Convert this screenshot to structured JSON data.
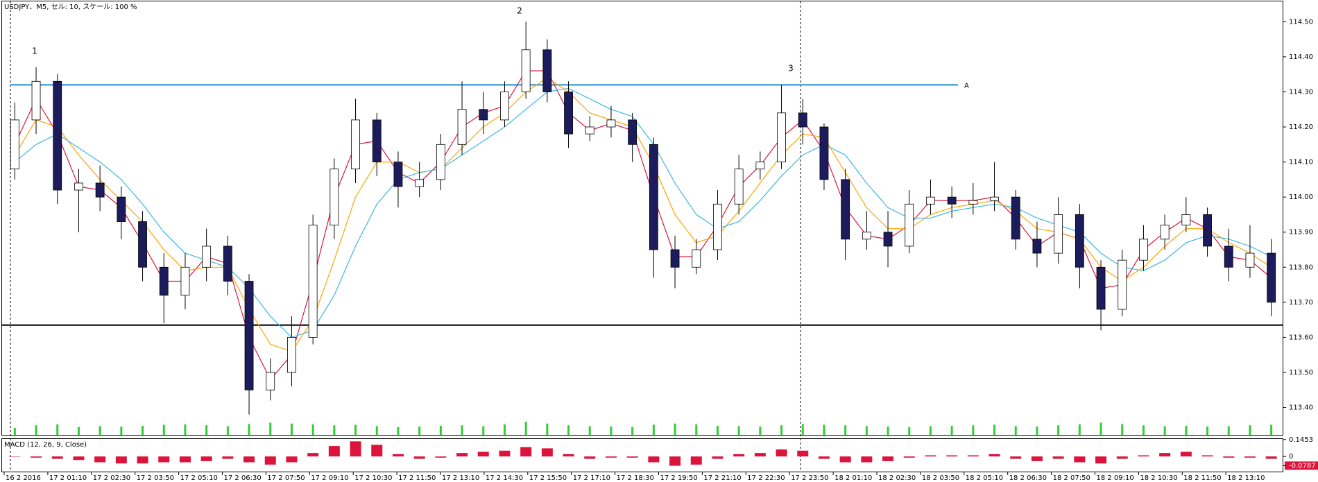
{
  "chart_data": {
    "type": "candlestick",
    "title": "USDJPY、M5, セル: 10, スケール: 100 %",
    "ylim": [
      113.322,
      114.558
    ],
    "yticks": [
      {
        "value": 114.5,
        "label": "114.50"
      },
      {
        "value": 114.4,
        "label": "114.40"
      },
      {
        "value": 114.3,
        "label": "114.30"
      },
      {
        "value": 114.2,
        "label": "114.20"
      },
      {
        "value": 114.1,
        "label": "114.10"
      },
      {
        "value": 114.0,
        "label": "114.00"
      },
      {
        "value": 113.9,
        "label": "113.90"
      },
      {
        "value": 113.8,
        "label": "113.80"
      },
      {
        "value": 113.7,
        "label": "113.70"
      },
      {
        "value": 113.6,
        "label": "113.60"
      },
      {
        "value": 113.5,
        "label": "113.50"
      },
      {
        "value": 113.4,
        "label": "113.40"
      }
    ],
    "xtick_labels": [
      "16 2 2016",
      "17 2 01:10",
      "17 2 02:30",
      "17 2 03:50",
      "17 2 05:10",
      "17 2 06:30",
      "17 2 07:50",
      "17 2 09:10",
      "17 2 10:30",
      "17 2 11:50",
      "17 2 13:10",
      "17 2 14:30",
      "17 2 15:50",
      "17 2 17:10",
      "17 2 18:30",
      "17 2 19:50",
      "17 2 21:10",
      "17 2 22:30",
      "17 2 23:50",
      "18 2 01:10",
      "18 2 02:30",
      "18 2 03:50",
      "18 2 05:10",
      "18 2 06:30",
      "18 2 07:50",
      "18 2 09:10",
      "18 2 10:30",
      "18 2 11:50",
      "18 2 13:10"
    ],
    "up_color": "#ffffff",
    "down_color": "#1c1c5c",
    "open": [
      114.08,
      114.22,
      114.33,
      114.02,
      114.04,
      114.0,
      113.93,
      113.8,
      113.72,
      113.8,
      113.86,
      113.76,
      113.45,
      113.5,
      113.6,
      113.92,
      114.08,
      114.22,
      114.1,
      114.03,
      114.05,
      114.15,
      114.25,
      114.22,
      114.3,
      114.42,
      114.3,
      114.18,
      114.2,
      114.22,
      114.15,
      113.85,
      113.8,
      113.85,
      113.98,
      114.08,
      114.1,
      114.24,
      114.2,
      114.05,
      113.88,
      113.9,
      113.86,
      113.98,
      114.0,
      113.98,
      113.99,
      114.0,
      113.88,
      113.84,
      113.95,
      113.8,
      113.68,
      113.82,
      113.88,
      113.92,
      113.95,
      113.86,
      113.8,
      113.84
    ],
    "high": [
      114.27,
      114.37,
      114.35,
      114.08,
      114.09,
      114.03,
      113.96,
      113.84,
      113.84,
      113.91,
      113.89,
      113.78,
      113.54,
      113.66,
      113.95,
      114.11,
      114.28,
      114.24,
      114.13,
      114.1,
      114.18,
      114.33,
      114.3,
      114.33,
      114.5,
      114.45,
      114.33,
      114.23,
      114.26,
      114.24,
      114.17,
      113.89,
      113.88,
      114.02,
      114.12,
      114.13,
      114.32,
      114.28,
      114.21,
      114.08,
      113.96,
      113.96,
      114.02,
      114.05,
      114.03,
      114.04,
      114.1,
      114.02,
      113.93,
      114.0,
      113.98,
      113.82,
      113.85,
      113.92,
      113.95,
      114.0,
      113.97,
      113.91,
      113.92,
      113.88
    ],
    "low": [
      114.05,
      114.18,
      113.98,
      113.9,
      113.96,
      113.88,
      113.76,
      113.64,
      113.68,
      113.76,
      113.72,
      113.38,
      113.42,
      113.46,
      113.58,
      113.88,
      114.04,
      114.06,
      113.97,
      114.0,
      114.02,
      114.12,
      114.18,
      114.2,
      114.28,
      114.27,
      114.14,
      114.16,
      114.17,
      114.1,
      113.77,
      113.74,
      113.78,
      113.82,
      113.95,
      114.05,
      114.08,
      114.15,
      114.02,
      113.82,
      113.85,
      113.8,
      113.84,
      113.95,
      113.94,
      113.95,
      113.96,
      113.85,
      113.8,
      113.81,
      113.74,
      113.62,
      113.66,
      113.79,
      113.85,
      113.9,
      113.83,
      113.76,
      113.77,
      113.66
    ],
    "close": [
      114.22,
      114.33,
      114.02,
      114.04,
      114.0,
      113.93,
      113.8,
      113.72,
      113.8,
      113.86,
      113.76,
      113.45,
      113.5,
      113.6,
      113.92,
      114.08,
      114.22,
      114.1,
      114.03,
      114.05,
      114.15,
      114.25,
      114.22,
      114.3,
      114.42,
      114.3,
      114.18,
      114.2,
      114.22,
      114.15,
      113.85,
      113.8,
      113.85,
      113.98,
      114.08,
      114.1,
      114.24,
      114.2,
      114.05,
      113.88,
      113.9,
      113.86,
      113.98,
      114.0,
      113.98,
      113.99,
      114.0,
      113.88,
      113.84,
      113.95,
      113.8,
      113.68,
      113.82,
      113.88,
      113.92,
      113.95,
      113.86,
      113.8,
      113.84,
      113.7
    ],
    "moving_averages": [
      {
        "color": "#dc143c",
        "values": [
          114.15,
          114.28,
          114.18,
          114.03,
          114.02,
          113.97,
          113.87,
          113.76,
          113.76,
          113.83,
          113.81,
          113.6,
          113.48,
          113.55,
          113.76,
          114.0,
          114.15,
          114.16,
          114.07,
          114.04,
          114.1,
          114.2,
          114.24,
          114.26,
          114.36,
          114.36,
          114.24,
          114.19,
          114.21,
          114.19,
          114.0,
          113.83,
          113.83,
          113.92,
          114.03,
          114.09,
          114.17,
          114.22,
          114.13,
          113.97,
          113.89,
          113.88,
          113.92,
          113.99,
          113.99,
          113.99,
          114.0,
          113.94,
          113.86,
          113.9,
          113.88,
          113.74,
          113.75,
          113.85,
          113.9,
          113.94,
          113.91,
          113.83,
          113.82,
          113.77
        ]
      },
      {
        "color": "#ffa500",
        "values": [
          114.12,
          114.22,
          114.2,
          114.12,
          114.05,
          113.99,
          113.93,
          113.85,
          113.79,
          113.8,
          113.8,
          113.68,
          113.58,
          113.56,
          113.65,
          113.82,
          114.0,
          114.1,
          114.1,
          114.07,
          114.08,
          114.14,
          114.2,
          114.24,
          114.3,
          114.34,
          114.3,
          114.24,
          114.22,
          114.2,
          114.09,
          113.95,
          113.87,
          113.89,
          113.96,
          114.04,
          114.12,
          114.18,
          114.17,
          114.07,
          113.97,
          113.91,
          113.91,
          113.95,
          113.97,
          113.98,
          113.99,
          113.96,
          113.91,
          113.9,
          113.88,
          113.8,
          113.76,
          113.8,
          113.86,
          113.91,
          113.91,
          113.87,
          113.84,
          113.8
        ]
      },
      {
        "color": "#3db7e4",
        "values": [
          114.1,
          114.15,
          114.18,
          114.14,
          114.1,
          114.05,
          113.98,
          113.9,
          113.84,
          113.82,
          113.8,
          113.74,
          113.66,
          113.6,
          113.62,
          113.72,
          113.86,
          113.98,
          114.05,
          114.07,
          114.08,
          114.12,
          114.16,
          114.2,
          114.25,
          114.3,
          114.31,
          114.28,
          114.25,
          114.23,
          114.15,
          114.04,
          113.95,
          113.91,
          113.93,
          113.99,
          114.06,
          114.12,
          114.15,
          114.12,
          114.04,
          113.97,
          113.94,
          113.94,
          113.96,
          113.97,
          113.98,
          113.97,
          113.94,
          113.92,
          113.9,
          113.84,
          113.8,
          113.79,
          113.82,
          113.87,
          113.89,
          113.88,
          113.86,
          113.83
        ]
      }
    ],
    "volume": {
      "color": "#32cd32",
      "ylim": [
        0,
        100
      ],
      "values": [
        40,
        55,
        60,
        45,
        50,
        48,
        52,
        58,
        60,
        55,
        50,
        62,
        70,
        65,
        60,
        55,
        58,
        50,
        45,
        48,
        52,
        55,
        50,
        60,
        75,
        65,
        55,
        50,
        48,
        45,
        58,
        65,
        60,
        52,
        50,
        48,
        55,
        62,
        58,
        55,
        50,
        48,
        45,
        50,
        52,
        55,
        58,
        50,
        48,
        55,
        60,
        70,
        62,
        55,
        50,
        52,
        48,
        50,
        55,
        58
      ]
    },
    "hlines": [
      {
        "value": 114.32,
        "color": "#1e8fd6",
        "label": "A"
      },
      {
        "value": 113.635,
        "color": "#000000"
      }
    ],
    "annotations": [
      "1",
      "2",
      "3"
    ],
    "macd": {
      "title": "MACD (12, 26, 9, Close)",
      "color": "#dc143c",
      "ylim": [
        -0.13,
        0.15
      ],
      "yticks": [
        0.1453,
        0,
        -0.0787
      ],
      "values": [
        0,
        -0.01,
        -0.02,
        -0.03,
        -0.05,
        -0.06,
        -0.06,
        -0.05,
        -0.05,
        -0.04,
        -0.02,
        -0.05,
        -0.07,
        -0.05,
        0.03,
        0.09,
        0.13,
        0.1,
        0.02,
        -0.02,
        -0.01,
        0.03,
        0.04,
        0.05,
        0.08,
        0.07,
        0.02,
        -0.02,
        -0.01,
        -0.01,
        -0.05,
        -0.08,
        -0.07,
        -0.02,
        0.02,
        0.03,
        0.06,
        0.05,
        -0.02,
        -0.05,
        -0.05,
        -0.04,
        -0.01,
        0.01,
        0.01,
        0.01,
        0.02,
        -0.02,
        -0.04,
        -0.02,
        -0.05,
        -0.06,
        -0.02,
        0.01,
        0.03,
        0.04,
        0.01,
        -0.01,
        -0.01,
        -0.02
      ]
    }
  }
}
